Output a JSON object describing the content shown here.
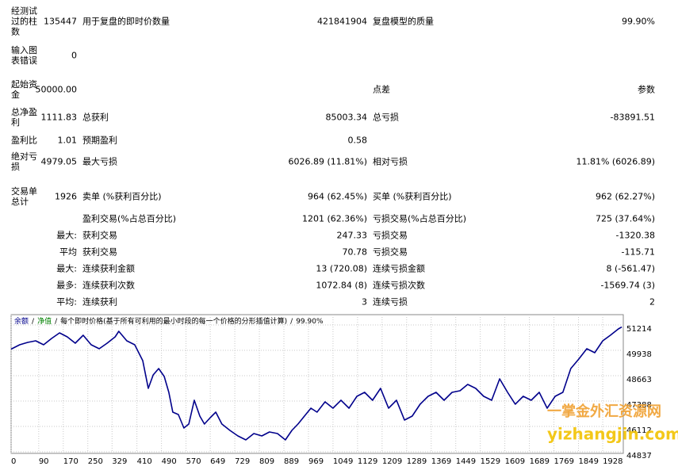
{
  "report": {
    "rows": [
      [
        "经测试过的柱数",
        "135447",
        "用于复盘的即时价数量",
        "421841904",
        "复盘模型的质量",
        "99.90%"
      ],
      [
        "输入图表错误",
        "0"
      ],
      [
        "起始资金",
        "50000.00",
        null,
        null,
        "点差",
        "参数"
      ],
      [
        "总净盈利",
        "1111.83",
        "总获利",
        "85003.34",
        "总亏损",
        "-83891.51"
      ],
      [
        "盈利比",
        "1.01",
        "预期盈利",
        "0.58"
      ],
      [
        "绝对亏损",
        "4979.05",
        "最大亏损",
        "6026.89 (11.81%)",
        "相对亏损",
        "11.81% (6026.89)"
      ],
      [
        "交易单总计",
        "1926",
        "卖单 (%获利百分比)",
        "964 (62.45%)",
        "买单 (%获利百分比)",
        "962 (62.27%)"
      ],
      [
        null,
        null,
        "盈利交易(%占总百分比)",
        "1201 (62.36%)",
        "亏损交易(%占总百分比)",
        "725 (37.64%)"
      ],
      [
        null,
        "最大:",
        "获利交易",
        "247.33",
        "亏损交易",
        "-1320.38"
      ],
      [
        null,
        "平均",
        "获利交易",
        "70.78",
        "亏损交易",
        "-115.71"
      ],
      [
        null,
        "最大:",
        "连续获利金额",
        "13 (720.08)",
        "连续亏损金额",
        "8 (-561.47)"
      ],
      [
        null,
        "最多:",
        "连续获利次数",
        "1072.84 (8)",
        "连续亏损次数",
        "-1569.74 (3)"
      ],
      [
        null,
        "平均:",
        "连续获利",
        "3",
        "连续亏损",
        "2"
      ]
    ]
  },
  "chart_data": {
    "type": "line",
    "title": "每个即时价格(基于所有可利用的最小时段的每一个价格的分形插值计算)",
    "separator": "/",
    "equity_label": "净值",
    "equity_color": "#008000",
    "quality": "99.90%",
    "x": [
      0,
      28,
      54,
      80,
      106,
      132,
      158,
      183,
      209,
      235,
      261,
      287,
      313,
      339,
      351,
      377,
      403,
      429,
      447,
      463,
      481,
      499,
      514,
      527,
      545,
      563,
      579,
      597,
      615,
      630,
      649,
      667,
      687,
      713,
      739,
      765,
      791,
      817,
      842,
      868,
      894,
      915,
      935,
      956,
      977,
      997,
      1023,
      1049,
      1075,
      1101,
      1127,
      1152,
      1178,
      1204,
      1230,
      1256,
      1282,
      1307,
      1333,
      1359,
      1385,
      1411,
      1437,
      1463,
      1488,
      1514,
      1540,
      1566,
      1592,
      1618,
      1643,
      1669,
      1695,
      1721,
      1747,
      1773,
      1798,
      1824,
      1850,
      1876,
      1902,
      1928,
      1953,
      1979,
      1990
    ],
    "series": [
      {
        "name": "余额",
        "color": "#00008b",
        "values": [
          50000,
          50217,
          50337,
          50417,
          50217,
          50536,
          50815,
          50616,
          50297,
          50696,
          50217,
          50018,
          50297,
          50616,
          50895,
          50417,
          50217,
          49420,
          48025,
          48703,
          49022,
          48623,
          47826,
          46829,
          46710,
          46032,
          46232,
          47427,
          46630,
          46232,
          46550,
          46829,
          46232,
          45913,
          45634,
          45434,
          45753,
          45634,
          45833,
          45753,
          45434,
          45913,
          46232,
          46630,
          47029,
          46829,
          47348,
          47029,
          47427,
          47029,
          47627,
          47826,
          47427,
          48025,
          47029,
          47427,
          46431,
          46630,
          47228,
          47627,
          47826,
          47427,
          47826,
          47906,
          48225,
          48025,
          47627,
          47427,
          48504,
          47826,
          47228,
          47627,
          47427,
          47826,
          47029,
          47627,
          47826,
          49022,
          49500,
          50018,
          49819,
          50417,
          50696,
          51015,
          51112
        ]
      }
    ],
    "xlim": [
      0,
      1995
    ],
    "xticks": [
      0,
      90,
      170,
      250,
      329,
      410,
      490,
      570,
      649,
      729,
      809,
      889,
      969,
      1049,
      1129,
      1209,
      1289,
      1369,
      1449,
      1529,
      1609,
      1689,
      1769,
      1849,
      1928
    ],
    "ylim": [
      44757,
      51732
    ],
    "yticks": [
      51214,
      49938,
      48663,
      47388,
      46112,
      44837
    ],
    "grid": true,
    "watermark": [
      "一掌金外汇资源网",
      "yizhangjin.com"
    ]
  }
}
